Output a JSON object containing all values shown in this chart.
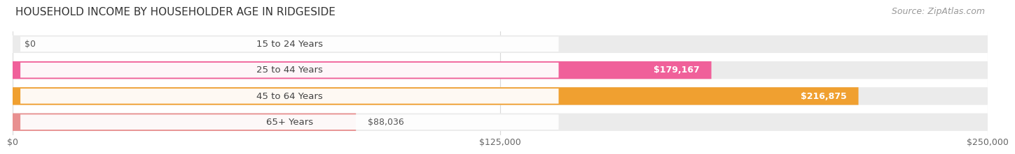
{
  "title": "HOUSEHOLD INCOME BY HOUSEHOLDER AGE IN RIDGESIDE",
  "source": "Source: ZipAtlas.com",
  "categories": [
    "15 to 24 Years",
    "25 to 44 Years",
    "45 to 64 Years",
    "65+ Years"
  ],
  "values": [
    0,
    179167,
    216875,
    88036
  ],
  "bar_colors": [
    "#b0b0e0",
    "#f0609a",
    "#f0a030",
    "#e89090"
  ],
  "bar_bg_color": "#ebebeb",
  "value_labels": [
    "$0",
    "$179,167",
    "$216,875",
    "$88,036"
  ],
  "xtick_labels": [
    "$0",
    "$125,000",
    "$250,000"
  ],
  "xtick_vals": [
    0,
    125000,
    250000
  ],
  "title_fontsize": 11,
  "source_fontsize": 9,
  "cat_fontsize": 9.5,
  "value_fontsize": 9,
  "background_color": "#ffffff",
  "max_val": 250000,
  "grid_color": "#d8d8d8"
}
